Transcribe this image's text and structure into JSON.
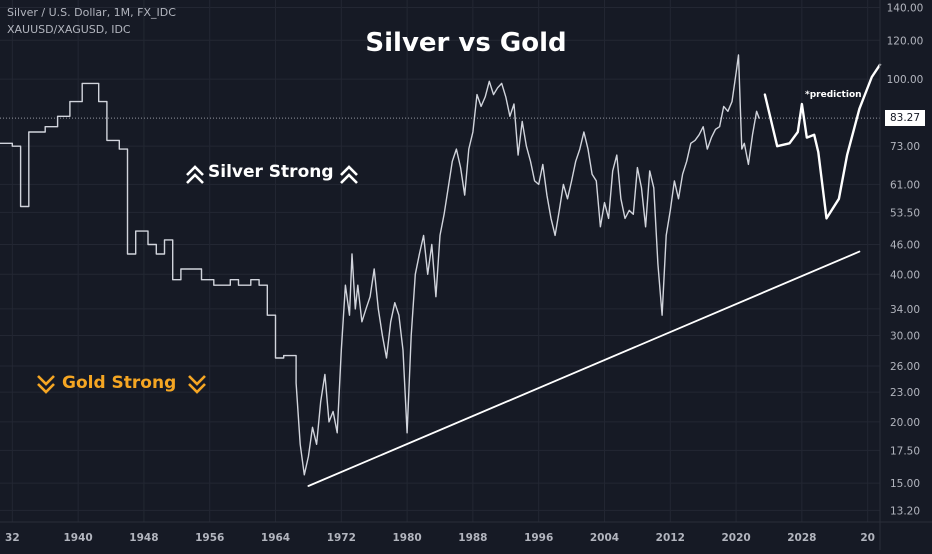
{
  "header": {
    "symbol_line": "Silver / U.S. Dollar, 1M, FX_IDC",
    "indicator_line": "XAUUSD/XAGUSD, IDC"
  },
  "annotations": {
    "silver_strong": "Silver Strong",
    "gold_strong": "Gold Strong",
    "prediction": "*prediction",
    "silver_color": "#ffffff",
    "gold_color": "#f5a623"
  },
  "colors": {
    "background": "#161a25",
    "grid": "#232733",
    "line": "#d1d4dc"
  },
  "chart_data": {
    "type": "line",
    "title": "Silver vs Gold",
    "y_scale": "log",
    "ylim": [
      12.5,
      145
    ],
    "xlim": [
      1930.5,
      2037.5
    ],
    "y_ticks": [
      "140.00",
      "120.00",
      "100.00",
      "83.27",
      "73.00",
      "61.00",
      "53.50",
      "46.00",
      "40.00",
      "34.00",
      "30.00",
      "26.00",
      "23.00",
      "20.00",
      "17.50",
      "15.00",
      "13.20"
    ],
    "x_ticks": [
      "32",
      "1940",
      "1948",
      "1956",
      "1964",
      "1972",
      "1980",
      "1988",
      "1996",
      "2004",
      "2012",
      "2020",
      "2028",
      "20"
    ],
    "last_value": 83.27,
    "series": [
      {
        "values": [
          [
            1930.5,
            74
          ],
          [
            1932,
            74
          ],
          [
            1932,
            73
          ],
          [
            1933,
            73
          ],
          [
            1933,
            55
          ],
          [
            1934,
            55
          ],
          [
            1934,
            78
          ],
          [
            1936,
            78
          ],
          [
            1936,
            80
          ],
          [
            1937.5,
            80
          ],
          [
            1937.5,
            84
          ],
          [
            1939,
            84
          ],
          [
            1939,
            90
          ],
          [
            1940.5,
            90
          ],
          [
            1940.5,
            98
          ],
          [
            1942.5,
            98
          ],
          [
            1942.5,
            90
          ],
          [
            1943.5,
            90
          ],
          [
            1943.5,
            75
          ],
          [
            1945,
            75
          ],
          [
            1945,
            72
          ],
          [
            1946,
            72
          ],
          [
            1946,
            44
          ],
          [
            1947,
            44
          ],
          [
            1947,
            49
          ],
          [
            1948.5,
            49
          ],
          [
            1948.5,
            46
          ],
          [
            1949.5,
            46
          ],
          [
            1949.5,
            44
          ],
          [
            1950.5,
            44
          ],
          [
            1950.5,
            47
          ],
          [
            1951.5,
            47
          ],
          [
            1951.5,
            39
          ],
          [
            1952.5,
            39
          ],
          [
            1952.5,
            41
          ],
          [
            1955,
            41
          ],
          [
            1955,
            39
          ],
          [
            1956.5,
            39
          ],
          [
            1956.5,
            38
          ],
          [
            1958.5,
            38
          ],
          [
            1958.5,
            39
          ],
          [
            1959.5,
            39
          ],
          [
            1959.5,
            38
          ],
          [
            1961,
            38
          ],
          [
            1961,
            39
          ],
          [
            1962,
            39
          ],
          [
            1962,
            38
          ],
          [
            1963,
            38
          ],
          [
            1963,
            33
          ],
          [
            1964,
            33
          ],
          [
            1964,
            27
          ],
          [
            1965,
            27
          ],
          [
            1965,
            27.3
          ],
          [
            1966.5,
            27.3
          ],
          [
            1966.5,
            24
          ],
          [
            1967,
            18
          ],
          [
            1967.5,
            15.6
          ],
          [
            1968,
            17
          ],
          [
            1968.5,
            19.5
          ],
          [
            1969,
            18
          ],
          [
            1969.5,
            22
          ],
          [
            1970,
            25
          ],
          [
            1970.5,
            20
          ],
          [
            1971,
            21
          ],
          [
            1971.5,
            19
          ],
          [
            1972,
            28
          ],
          [
            1972.5,
            38
          ],
          [
            1973,
            33
          ],
          [
            1973.3,
            44
          ],
          [
            1973.7,
            34
          ],
          [
            1974,
            38
          ],
          [
            1974.5,
            32
          ],
          [
            1975,
            34
          ],
          [
            1975.5,
            36
          ],
          [
            1976,
            41
          ],
          [
            1976.5,
            34
          ],
          [
            1977,
            30
          ],
          [
            1977.5,
            27
          ],
          [
            1978,
            32
          ],
          [
            1978.5,
            35
          ],
          [
            1979,
            33
          ],
          [
            1979.5,
            28
          ],
          [
            1980,
            19
          ],
          [
            1980.5,
            30
          ],
          [
            1981,
            40
          ],
          [
            1981.5,
            44
          ],
          [
            1982,
            48
          ],
          [
            1982.5,
            40
          ],
          [
            1983,
            46
          ],
          [
            1983.5,
            36
          ],
          [
            1984,
            48
          ],
          [
            1984.5,
            53
          ],
          [
            1985,
            60
          ],
          [
            1985.5,
            68
          ],
          [
            1986,
            72
          ],
          [
            1986.5,
            66
          ],
          [
            1987,
            58
          ],
          [
            1987.5,
            72
          ],
          [
            1988,
            78
          ],
          [
            1988.5,
            93
          ],
          [
            1989,
            88
          ],
          [
            1989.5,
            92
          ],
          [
            1990,
            99
          ],
          [
            1990.5,
            93
          ],
          [
            1991,
            96
          ],
          [
            1991.5,
            98
          ],
          [
            1992,
            92
          ],
          [
            1992.5,
            84
          ],
          [
            1993,
            89
          ],
          [
            1993.5,
            70
          ],
          [
            1994,
            82
          ],
          [
            1994.5,
            73
          ],
          [
            1995,
            68
          ],
          [
            1995.5,
            62
          ],
          [
            1996,
            61
          ],
          [
            1996.5,
            67
          ],
          [
            1997,
            58
          ],
          [
            1997.5,
            52
          ],
          [
            1998,
            48
          ],
          [
            1998.5,
            54
          ],
          [
            1999,
            61
          ],
          [
            1999.5,
            57
          ],
          [
            2000,
            62
          ],
          [
            2000.5,
            68
          ],
          [
            2001,
            72
          ],
          [
            2001.5,
            78
          ],
          [
            2002,
            72
          ],
          [
            2002.5,
            64
          ],
          [
            2003,
            62
          ],
          [
            2003.5,
            50
          ],
          [
            2004,
            56
          ],
          [
            2004.5,
            52
          ],
          [
            2005,
            65
          ],
          [
            2005.5,
            70
          ],
          [
            2006,
            57
          ],
          [
            2006.5,
            52
          ],
          [
            2007,
            54
          ],
          [
            2007.5,
            53
          ],
          [
            2008,
            66
          ],
          [
            2008.5,
            60
          ],
          [
            2009,
            50
          ],
          [
            2009.5,
            65
          ],
          [
            2010,
            60
          ],
          [
            2010.5,
            42
          ],
          [
            2011,
            33
          ],
          [
            2011.5,
            48
          ],
          [
            2012,
            54
          ],
          [
            2012.5,
            62
          ],
          [
            2013,
            57
          ],
          [
            2013.5,
            64
          ],
          [
            2014,
            68
          ],
          [
            2014.5,
            74
          ],
          [
            2015,
            75
          ],
          [
            2015.5,
            77
          ],
          [
            2016,
            80
          ],
          [
            2016.5,
            72
          ],
          [
            2017,
            76
          ],
          [
            2017.5,
            79
          ],
          [
            2018,
            80
          ],
          [
            2018.5,
            88
          ],
          [
            2019,
            86
          ],
          [
            2019.5,
            90
          ],
          [
            2020,
            103
          ],
          [
            2020.3,
            112
          ],
          [
            2020.7,
            72
          ],
          [
            2021,
            74
          ],
          [
            2021.5,
            67
          ],
          [
            2022,
            77
          ],
          [
            2022.5,
            86
          ],
          [
            2022.8,
            83.27
          ]
        ]
      },
      {
        "name": "*prediction",
        "values": [
          [
            2023.5,
            93
          ],
          [
            2025,
            73
          ],
          [
            2026.5,
            74
          ],
          [
            2027.5,
            78
          ],
          [
            2028,
            89
          ],
          [
            2028.6,
            76
          ],
          [
            2029.5,
            77
          ],
          [
            2030,
            71
          ],
          [
            2031,
            52
          ],
          [
            2032.5,
            57
          ],
          [
            2033.5,
            70
          ],
          [
            2035,
            87
          ],
          [
            2036.5,
            101
          ],
          [
            2037.5,
            107
          ]
        ]
      },
      {
        "values": [
          [
            1968,
            14.8
          ],
          [
            2035,
            44.5
          ]
        ]
      }
    ],
    "grid": true
  }
}
